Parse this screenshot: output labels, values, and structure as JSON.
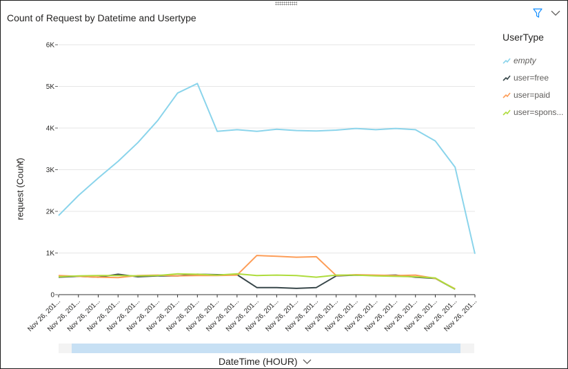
{
  "title": "Count of Request by Datetime and Usertype",
  "icons": {
    "filter": "filter-icon",
    "more": "chevron-down-icon",
    "axis_expand": "chevron-right-icon",
    "axis_dropdown": "chevron-down-icon"
  },
  "chart_data": {
    "type": "line",
    "title": "Count of Request by Datetime and Usertype",
    "xlabel": "DateTime (HOUR)",
    "ylabel": "request (Count)",
    "ylim": [
      0,
      6000
    ],
    "yticks": [
      "0",
      "1K",
      "2K",
      "3K",
      "4K",
      "5K",
      "6K"
    ],
    "ytick_values": [
      0,
      1000,
      2000,
      3000,
      4000,
      5000,
      6000
    ],
    "categories": [
      "Nov 26, 201...",
      "Nov 26, 201...",
      "Nov 26, 201...",
      "Nov 26, 201...",
      "Nov 26, 201...",
      "Nov 26, 201...",
      "Nov 26, 201...",
      "Nov 26, 201...",
      "Nov 26, 201...",
      "Nov 26, 201...",
      "Nov 26, 201...",
      "Nov 26, 201...",
      "Nov 26, 201...",
      "Nov 26, 201...",
      "Nov 26, 201...",
      "Nov 26, 201...",
      "Nov 26, 201...",
      "Nov 26, 201...",
      "Nov 26, 201...",
      "Nov 26, 201...",
      "Nov 26, 201...",
      "Nov 26, 201..."
    ],
    "grid": true,
    "legend_title": "UserType",
    "legend_position": "right",
    "series": [
      {
        "name": "empty",
        "color": "#8ad4eb",
        "values": [
          1900,
          2380,
          2800,
          3200,
          3650,
          4180,
          4840,
          5070,
          3920,
          3960,
          3920,
          3970,
          3940,
          3930,
          3950,
          3990,
          3960,
          3990,
          3960,
          3690,
          3060,
          980
        ]
      },
      {
        "name": "user=free",
        "color": "#374649",
        "values": [
          420,
          440,
          420,
          490,
          430,
          450,
          450,
          490,
          480,
          480,
          170,
          170,
          150,
          170,
          450,
          470,
          460,
          470,
          420,
          390,
          130,
          null
        ]
      },
      {
        "name": "user=paid",
        "color": "#fd9d57",
        "values": [
          460,
          440,
          420,
          410,
          460,
          470,
          450,
          460,
          460,
          470,
          940,
          920,
          900,
          910,
          460,
          480,
          470,
          460,
          470,
          390,
          140,
          null
        ]
      },
      {
        "name": "user=spons...",
        "color": "#aedc3c",
        "values": [
          430,
          450,
          460,
          460,
          450,
          460,
          500,
          490,
          470,
          500,
          460,
          470,
          460,
          420,
          470,
          470,
          450,
          440,
          430,
          400,
          130,
          null
        ]
      }
    ]
  }
}
